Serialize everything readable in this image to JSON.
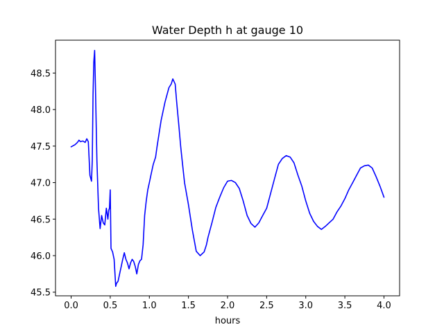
{
  "chart_data": {
    "type": "line",
    "title": "Water Depth h at gauge 10",
    "xlabel": "hours",
    "ylabel": "",
    "xlim": [
      -0.2,
      4.2
    ],
    "ylim": [
      45.45,
      48.95
    ],
    "xticks": [
      0.0,
      0.5,
      1.0,
      1.5,
      2.0,
      2.5,
      3.0,
      3.5,
      4.0
    ],
    "xtick_labels": [
      "0.0",
      "0.5",
      "1.0",
      "1.5",
      "2.0",
      "2.5",
      "3.0",
      "3.5",
      "4.0"
    ],
    "yticks": [
      45.5,
      46.0,
      46.5,
      47.0,
      47.5,
      48.0,
      48.5
    ],
    "ytick_labels": [
      "45.5",
      "46.0",
      "46.5",
      "47.0",
      "47.5",
      "48.0",
      "48.5"
    ],
    "grid": false,
    "series": [
      {
        "color": "#0000ff",
        "x": [
          0.0,
          0.05,
          0.08,
          0.1,
          0.12,
          0.15,
          0.18,
          0.2,
          0.22,
          0.24,
          0.26,
          0.27,
          0.28,
          0.29,
          0.3,
          0.31,
          0.33,
          0.35,
          0.37,
          0.39,
          0.41,
          0.43,
          0.45,
          0.47,
          0.48,
          0.49,
          0.5,
          0.51,
          0.53,
          0.55,
          0.57,
          0.58,
          0.6,
          0.62,
          0.64,
          0.66,
          0.68,
          0.7,
          0.72,
          0.74,
          0.76,
          0.78,
          0.8,
          0.82,
          0.84,
          0.86,
          0.88,
          0.9,
          0.92,
          0.94,
          0.96,
          0.98,
          1.0,
          1.02,
          1.05,
          1.08,
          1.1,
          1.15,
          1.2,
          1.25,
          1.28,
          1.3,
          1.33,
          1.35,
          1.38,
          1.4,
          1.42,
          1.45,
          1.5,
          1.55,
          1.6,
          1.65,
          1.7,
          1.73,
          1.75,
          1.8,
          1.85,
          1.9,
          1.95,
          2.0,
          2.05,
          2.1,
          2.15,
          2.2,
          2.25,
          2.3,
          2.35,
          2.4,
          2.45,
          2.5,
          2.55,
          2.6,
          2.65,
          2.7,
          2.75,
          2.8,
          2.85,
          2.9,
          2.95,
          3.0,
          3.05,
          3.1,
          3.15,
          3.2,
          3.25,
          3.3,
          3.35,
          3.4,
          3.45,
          3.5,
          3.55,
          3.6,
          3.65,
          3.7,
          3.75,
          3.8,
          3.85,
          3.9,
          3.95,
          4.0
        ],
        "y": [
          47.49,
          47.52,
          47.55,
          47.58,
          47.56,
          47.57,
          47.55,
          47.6,
          47.56,
          47.1,
          47.02,
          47.3,
          48.2,
          48.65,
          48.81,
          48.35,
          47.3,
          46.65,
          46.37,
          46.55,
          46.45,
          46.42,
          46.65,
          46.5,
          46.62,
          46.65,
          46.9,
          46.1,
          46.05,
          45.95,
          45.58,
          45.62,
          45.65,
          45.75,
          45.85,
          45.95,
          46.04,
          45.95,
          45.9,
          45.82,
          45.9,
          45.95,
          45.92,
          45.85,
          45.75,
          45.88,
          45.93,
          45.95,
          46.15,
          46.55,
          46.75,
          46.9,
          47.0,
          47.1,
          47.25,
          47.35,
          47.5,
          47.85,
          48.1,
          48.3,
          48.35,
          48.42,
          48.35,
          48.1,
          47.75,
          47.5,
          47.3,
          47.0,
          46.7,
          46.35,
          46.06,
          46.0,
          46.05,
          46.15,
          46.25,
          46.45,
          46.66,
          46.8,
          46.93,
          47.02,
          47.03,
          47.0,
          46.92,
          46.75,
          46.55,
          46.44,
          46.39,
          46.45,
          46.55,
          46.65,
          46.85,
          47.05,
          47.25,
          47.33,
          47.37,
          47.35,
          47.27,
          47.1,
          46.95,
          46.75,
          46.58,
          46.47,
          46.4,
          46.36,
          46.4,
          46.45,
          46.5,
          46.6,
          46.68,
          46.78,
          46.9,
          47.0,
          47.1,
          47.2,
          47.23,
          47.24,
          47.2,
          47.08,
          46.95,
          46.8
        ]
      }
    ]
  }
}
